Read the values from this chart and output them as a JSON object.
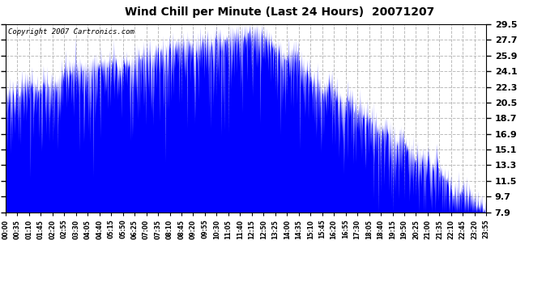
{
  "title": "Wind Chill per Minute (Last 24 Hours)  20071207",
  "copyright": "Copyright 2007 Cartronics.com",
  "bar_color": "#0000FF",
  "background_color": "#FFFFFF",
  "plot_bg_color": "#FFFFFF",
  "grid_color": "#BBBBBB",
  "yticks": [
    7.9,
    9.7,
    11.5,
    13.3,
    15.1,
    16.9,
    18.7,
    20.5,
    22.3,
    24.1,
    25.9,
    27.7,
    29.5
  ],
  "ymin": 7.9,
  "ymax": 29.5,
  "xtick_labels": [
    "00:00",
    "00:35",
    "01:10",
    "01:45",
    "02:20",
    "02:55",
    "03:30",
    "04:05",
    "04:40",
    "05:15",
    "05:50",
    "06:25",
    "07:00",
    "07:35",
    "08:10",
    "08:45",
    "09:20",
    "09:55",
    "10:30",
    "11:05",
    "11:40",
    "12:15",
    "12:50",
    "13:25",
    "14:00",
    "14:35",
    "15:10",
    "15:45",
    "16:20",
    "16:55",
    "17:30",
    "18:05",
    "18:40",
    "19:15",
    "19:50",
    "20:25",
    "21:00",
    "21:35",
    "22:10",
    "22:45",
    "23:20",
    "23:55"
  ],
  "num_points": 1440,
  "seed": 42
}
